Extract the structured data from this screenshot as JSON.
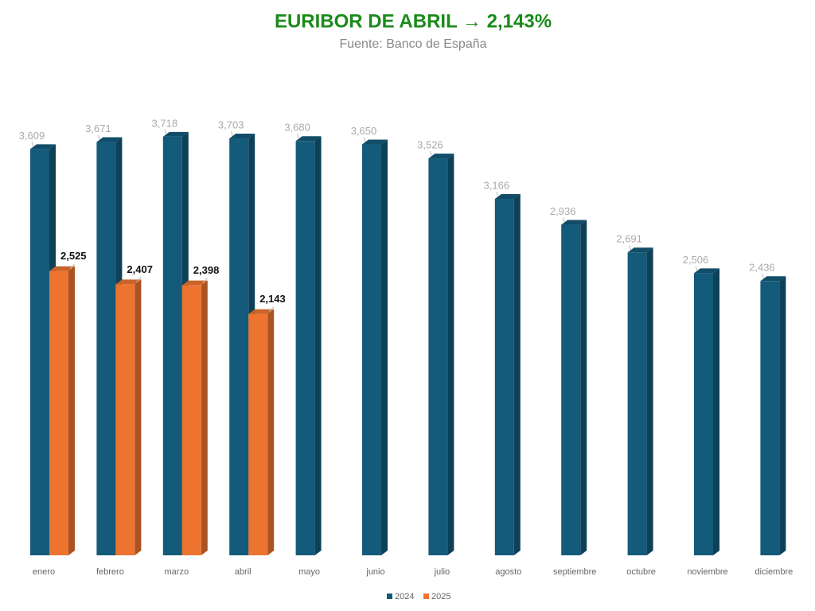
{
  "chart_data": {
    "type": "bar3d",
    "title": "EURIBOR DE ABRIL → 2,143%",
    "subtitle": "Fuente: Banco de España",
    "categories": [
      "enero",
      "febrero",
      "marzo",
      "abril",
      "mayo",
      "junio",
      "julio",
      "agosto",
      "septiembre",
      "octubre",
      "noviembre",
      "diciembre"
    ],
    "series": [
      {
        "name": "2024",
        "color": "#145a7a",
        "values": [
          3.609,
          3.671,
          3.718,
          3.703,
          3.68,
          3.65,
          3.526,
          3.166,
          2.936,
          2.691,
          2.506,
          2.436
        ],
        "value_labels": [
          "3,609",
          "3,671",
          "3,718",
          "3,703",
          "3,680",
          "3,650",
          "3,526",
          "3,166",
          "2,936",
          "2,691",
          "2,506",
          "2,436"
        ]
      },
      {
        "name": "2025",
        "color": "#ed7430",
        "values": [
          2.525,
          2.407,
          2.398,
          2.143,
          null,
          null,
          null,
          null,
          null,
          null,
          null,
          null
        ],
        "value_labels": [
          "2,525",
          "2,407",
          "2,398",
          "2,143",
          null,
          null,
          null,
          null,
          null,
          null,
          null,
          null
        ]
      }
    ]
  }
}
